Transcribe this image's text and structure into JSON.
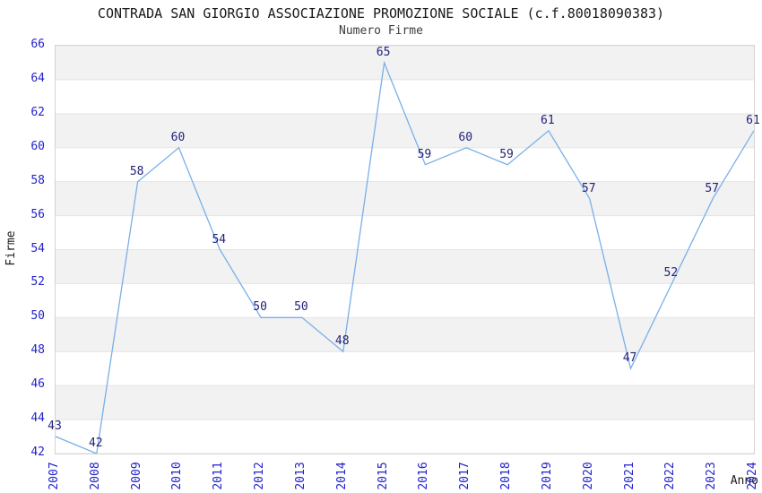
{
  "header": {
    "title": "CONTRADA SAN GIORGIO ASSOCIAZIONE PROMOZIONE SOCIALE (c.f.80018090383)",
    "subtitle": "Numero Firme"
  },
  "colors": {
    "line": "#79afe8",
    "tick_labels": "#2222cc",
    "data_labels": "#22227a",
    "band_gray": "#f2f2f2",
    "band_white": "#ffffff",
    "grid": "#e4e4e4",
    "border": "#d4d4d4"
  },
  "chart_data": {
    "type": "line",
    "title": "CONTRADA SAN GIORGIO ASSOCIAZIONE PROMOZIONE SOCIALE (c.f.80018090383)",
    "subtitle": "Numero Firme",
    "xlabel": "Anno",
    "ylabel": "Firme",
    "categories": [
      "2007",
      "2008",
      "2009",
      "2010",
      "2011",
      "2012",
      "2013",
      "2014",
      "2015",
      "2016",
      "2017",
      "2018",
      "2019",
      "2020",
      "2021",
      "2022",
      "2023",
      "2024"
    ],
    "values": [
      43,
      42,
      58,
      60,
      54,
      50,
      50,
      48,
      65,
      59,
      60,
      59,
      61,
      57,
      47,
      52,
      57,
      61
    ],
    "ylim": [
      42,
      66
    ],
    "ytick_step": 2,
    "grid": "horizontal alternating bands, gray band starts at top (66-64)",
    "legend_position": "none",
    "point_labels_shown": true,
    "markers": "none"
  }
}
